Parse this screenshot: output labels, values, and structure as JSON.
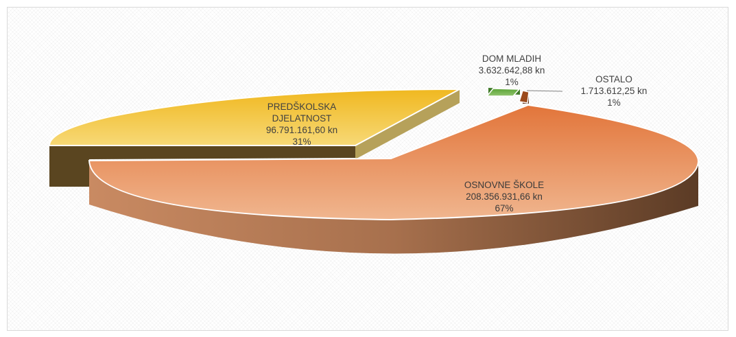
{
  "chart_data": {
    "type": "pie",
    "currency_unit": "kn",
    "slices": [
      {
        "name": "OSNOVNE ŠKOLE",
        "value": 208356931.66,
        "value_label": "208.356.931,66 kn",
        "percent_label": "67%",
        "color": "#E38F5A"
      },
      {
        "name_lines": [
          "PREDŠKOLSKA",
          "DJELATNOST"
        ],
        "name": "PREDŠKOLSKA DJELATNOST",
        "value": 96791161.6,
        "value_label": "96.791.161,60 kn",
        "percent_label": "31%",
        "color": "#F0C43E"
      },
      {
        "name": "DOM MLADIH",
        "value": 3632642.88,
        "value_label": "3.632.642,88 kn",
        "percent_label": "1%",
        "color": "#6FAF46"
      },
      {
        "name": "OSTALO",
        "value": 1713612.25,
        "value_label": "1.713.612,25 kn",
        "percent_label": "1%",
        "color": "#9B4A1C"
      }
    ]
  }
}
